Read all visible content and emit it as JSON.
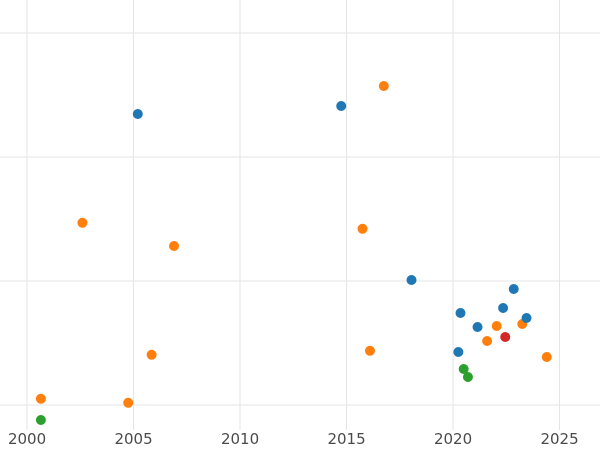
{
  "chart_data": {
    "type": "scatter",
    "title": "",
    "xlabel": "",
    "ylabel": "",
    "x_ticks": [
      "2000",
      "2005",
      "2010",
      "2015",
      "2020",
      "2025"
    ],
    "x_tick_values": [
      2000,
      2005,
      2010,
      2015,
      2020,
      2025
    ],
    "xlim": [
      1998.73,
      2026.9
    ],
    "ylim": [
      0,
      1.075
    ],
    "grid": true,
    "h_gridline_values": [
      0.0625,
      0.3725,
      0.6825,
      0.9925
    ],
    "legend": "none",
    "series": [
      {
        "name": "orange",
        "color": "#ff7f0e",
        "points": [
          [
            2000.65,
            0.078
          ],
          [
            2002.6,
            0.518
          ],
          [
            2004.75,
            0.068
          ],
          [
            2005.85,
            0.188
          ],
          [
            2006.9,
            0.46
          ],
          [
            2015.75,
            0.503
          ],
          [
            2016.1,
            0.198
          ],
          [
            2016.75,
            0.86
          ],
          [
            2021.6,
            0.2225
          ],
          [
            2022.05,
            0.26
          ],
          [
            2023.25,
            0.265
          ],
          [
            2024.4,
            0.1825
          ]
        ]
      },
      {
        "name": "blue",
        "color": "#1f77b4",
        "points": [
          [
            2005.2,
            0.79
          ],
          [
            2014.75,
            0.81
          ],
          [
            2018.05,
            0.375
          ],
          [
            2020.25,
            0.195
          ],
          [
            2020.35,
            0.2925
          ],
          [
            2021.15,
            0.2575
          ],
          [
            2022.35,
            0.305
          ],
          [
            2022.85,
            0.3525
          ],
          [
            2023.45,
            0.28
          ]
        ]
      },
      {
        "name": "green",
        "color": "#2ca02c",
        "points": [
          [
            2000.65,
            0.025
          ],
          [
            2020.5,
            0.1525
          ],
          [
            2020.7,
            0.1325
          ]
        ]
      },
      {
        "name": "red",
        "color": "#d62728",
        "points": [
          [
            2022.45,
            0.2325
          ]
        ]
      }
    ]
  },
  "colors": {
    "background": "#ffffff",
    "gridline": "#e5e5e5",
    "tick_text": "#4a4a4a"
  }
}
